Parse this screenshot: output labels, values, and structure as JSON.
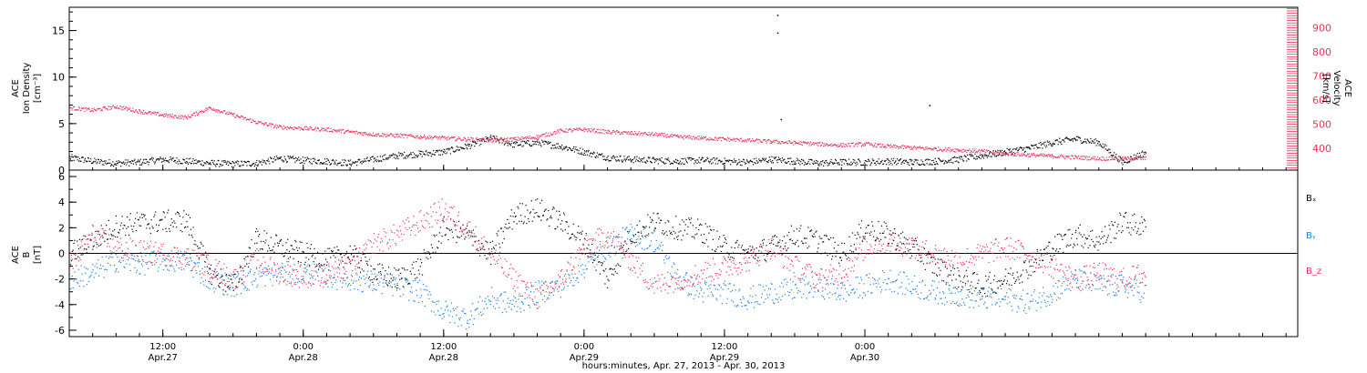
{
  "figure": {
    "xaxis_caption": "hours:minutes, Apr. 27, 2013 - Apr. 30, 2013"
  },
  "colors": {
    "black": "#000000",
    "red": "#e8335c",
    "blue": "#1a7fe0",
    "axis": "#000000"
  },
  "chart_data": [
    {
      "type": "scatter",
      "panel": "top",
      "ylabel_left": [
        "ACE",
        "Ion Density",
        "[cm⁻³]"
      ],
      "ylabel_right": [
        "ACE",
        "Velocity",
        "[km/s]"
      ],
      "ylim_left": [
        0,
        17.5
      ],
      "ylim_right": [
        310,
        985
      ],
      "left_ticks": [
        "0",
        "5",
        "10",
        "15"
      ],
      "right_ticks": [
        "400",
        "500",
        "600",
        "700",
        "800",
        "900"
      ],
      "x_hours_range": [
        0,
        105
      ],
      "series": [
        {
          "axis": "left",
          "color": "black",
          "x": [
            0,
            2,
            4,
            6,
            8,
            10,
            12,
            14,
            16,
            18,
            20,
            22,
            24,
            26,
            28,
            30,
            32,
            34,
            36,
            38,
            40,
            42,
            44,
            46,
            48,
            50,
            52,
            54,
            56,
            58,
            60,
            62,
            64,
            66,
            68,
            70,
            72,
            74,
            76,
            78,
            80,
            82,
            84,
            86,
            88,
            90,
            92
          ],
          "y": [
            1.4,
            1.0,
            0.8,
            0.9,
            1.2,
            1.0,
            0.8,
            0.7,
            0.8,
            1.3,
            1.1,
            1.0,
            0.8,
            1.2,
            1.6,
            1.8,
            2.0,
            2.6,
            3.5,
            2.8,
            3.0,
            2.6,
            2.0,
            1.4,
            1.2,
            1.1,
            1.0,
            1.1,
            1.0,
            0.9,
            1.2,
            1.0,
            0.8,
            0.9,
            0.9,
            1.0,
            0.9,
            1.0,
            1.2,
            1.6,
            2.0,
            2.4,
            3.0,
            3.4,
            3.0,
            0.9,
            2.0
          ]
        },
        {
          "axis": "right",
          "color": "red",
          "x": [
            0,
            2,
            4,
            6,
            8,
            10,
            12,
            14,
            16,
            18,
            20,
            22,
            24,
            26,
            28,
            30,
            32,
            34,
            36,
            38,
            40,
            42,
            44,
            46,
            48,
            50,
            52,
            54,
            56,
            58,
            60,
            62,
            64,
            66,
            68,
            70,
            72,
            74,
            76,
            78,
            80,
            82,
            84,
            86,
            88,
            90,
            92
          ],
          "y": [
            570,
            560,
            575,
            555,
            540,
            530,
            570,
            540,
            510,
            490,
            485,
            480,
            470,
            460,
            455,
            450,
            445,
            440,
            435,
            440,
            450,
            475,
            480,
            470,
            465,
            460,
            450,
            445,
            440,
            435,
            430,
            425,
            420,
            415,
            420,
            410,
            405,
            400,
            395,
            390,
            380,
            375,
            370,
            365,
            360,
            360,
            360
          ]
        }
      ],
      "spikes": [
        {
          "x": 60.5,
          "y": 16.7,
          "axis": "left"
        },
        {
          "x": 60.5,
          "y": 14.8,
          "axis": "left"
        },
        {
          "x": 73.5,
          "y": 7.0,
          "axis": "left"
        },
        {
          "x": 60.8,
          "y": 5.5,
          "axis": "left"
        }
      ]
    },
    {
      "type": "scatter",
      "panel": "bottom",
      "ylabel": [
        "ACE",
        "B",
        "[nT]"
      ],
      "ylim": [
        -6.5,
        6.5
      ],
      "yticks": [
        "-6",
        "-4",
        "-2",
        "0",
        "2",
        "4",
        "6"
      ],
      "zero_line": true,
      "x_hours_range": [
        0,
        105
      ],
      "series": [
        {
          "name": "Bₓ",
          "color": "black",
          "x": [
            0,
            2,
            4,
            6,
            8,
            10,
            12,
            14,
            16,
            18,
            20,
            22,
            24,
            26,
            28,
            30,
            32,
            34,
            36,
            38,
            40,
            42,
            44,
            46,
            48,
            50,
            52,
            54,
            56,
            58,
            60,
            62,
            64,
            66,
            68,
            70,
            72,
            74,
            76,
            78,
            80,
            82,
            84,
            86,
            88,
            90,
            92
          ],
          "y": [
            0.0,
            1.0,
            2.2,
            2.4,
            2.5,
            2.6,
            -1.5,
            -2.5,
            1.2,
            0.5,
            0.0,
            -0.5,
            0.0,
            -1.5,
            -2.0,
            -1.0,
            2.0,
            1.5,
            0.0,
            3.0,
            3.5,
            2.5,
            1.0,
            -2.0,
            1.5,
            2.5,
            2.0,
            1.8,
            0.5,
            0.0,
            0.5,
            1.5,
            1.0,
            0.0,
            2.0,
            1.5,
            0.5,
            -1.0,
            -2.0,
            -2.5,
            -2.0,
            -1.0,
            0.5,
            1.5,
            1.0,
            2.5,
            2.0
          ]
        },
        {
          "name": "Bᵧ",
          "color": "blue",
          "x": [
            0,
            2,
            4,
            6,
            8,
            10,
            12,
            14,
            16,
            18,
            20,
            22,
            24,
            26,
            28,
            30,
            32,
            34,
            36,
            38,
            40,
            42,
            44,
            46,
            48,
            50,
            52,
            54,
            56,
            58,
            60,
            62,
            64,
            66,
            68,
            70,
            72,
            74,
            76,
            78,
            80,
            82,
            84,
            86,
            88,
            90,
            92
          ],
          "y": [
            -2.0,
            -1.5,
            -0.5,
            -0.8,
            -0.5,
            -0.6,
            -2.0,
            -2.5,
            -1.8,
            -1.5,
            -1.5,
            -1.8,
            -2.0,
            -2.2,
            -2.5,
            -3.0,
            -4.5,
            -5.0,
            -3.5,
            -4.0,
            -3.0,
            -2.5,
            -1.0,
            0.5,
            1.5,
            1.0,
            -2.0,
            -3.0,
            -3.0,
            -3.5,
            -3.0,
            -2.8,
            -2.5,
            -3.0,
            -2.5,
            -2.0,
            -2.5,
            -3.0,
            -3.2,
            -3.5,
            -3.5,
            -3.8,
            -3.0,
            -2.0,
            -2.5,
            -2.5,
            -3.0
          ]
        },
        {
          "name": "B_z",
          "color": "red",
          "x": [
            0,
            2,
            4,
            6,
            8,
            10,
            12,
            14,
            16,
            18,
            20,
            22,
            24,
            26,
            28,
            30,
            32,
            34,
            36,
            38,
            40,
            42,
            44,
            46,
            48,
            50,
            52,
            54,
            56,
            58,
            60,
            62,
            64,
            66,
            68,
            70,
            72,
            74,
            76,
            78,
            80,
            82,
            84,
            86,
            88,
            90,
            92
          ],
          "y": [
            -1.0,
            1.5,
            0.5,
            0.2,
            0.0,
            -0.3,
            -1.0,
            -2.0,
            -0.5,
            -1.5,
            -1.8,
            -1.5,
            -1.2,
            0.8,
            1.5,
            2.5,
            3.5,
            2.0,
            0.0,
            -2.0,
            -3.5,
            -2.0,
            0.5,
            1.5,
            -0.5,
            -2.5,
            -2.0,
            -1.5,
            -1.0,
            -0.5,
            0.5,
            -1.0,
            -2.0,
            -1.5,
            0.5,
            1.0,
            0.5,
            0.0,
            -0.5,
            0.0,
            0.5,
            0.0,
            -1.0,
            -2.0,
            -1.5,
            -2.0,
            -1.5
          ]
        }
      ]
    }
  ],
  "x_ticks": [
    {
      "time": "12:00",
      "date": "Apr.27"
    },
    {
      "time": "0:00",
      "date": "Apr.28"
    },
    {
      "time": "12:00",
      "date": "Apr.28"
    },
    {
      "time": "0:00",
      "date": "Apr.29"
    },
    {
      "time": "12:00",
      "date": "Apr.29"
    },
    {
      "time": "0:00",
      "date": "Apr.30"
    }
  ]
}
